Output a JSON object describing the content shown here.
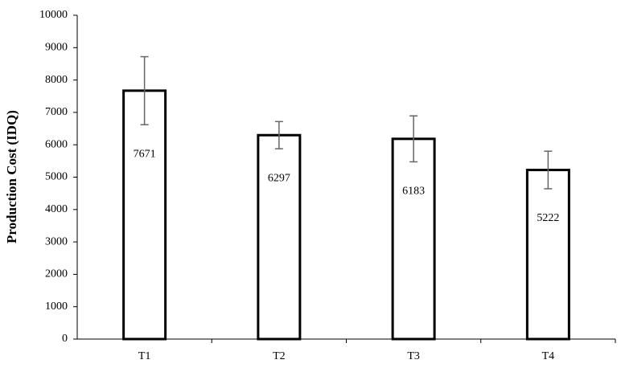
{
  "chart_data": {
    "type": "bar",
    "y_label": "Production Cost (IDQ)",
    "categories": [
      "T1",
      "T2",
      "T3",
      "T4"
    ],
    "values": [
      7671,
      6297,
      6183,
      5222
    ],
    "errors": [
      1050,
      420,
      710,
      580
    ],
    "color": "#ffffff",
    "ylim": [
      0,
      10000
    ],
    "yticks": [
      0,
      1000,
      2000,
      3000,
      4000,
      5000,
      6000,
      7000,
      8000,
      9000,
      10000
    ],
    "grid": false
  }
}
